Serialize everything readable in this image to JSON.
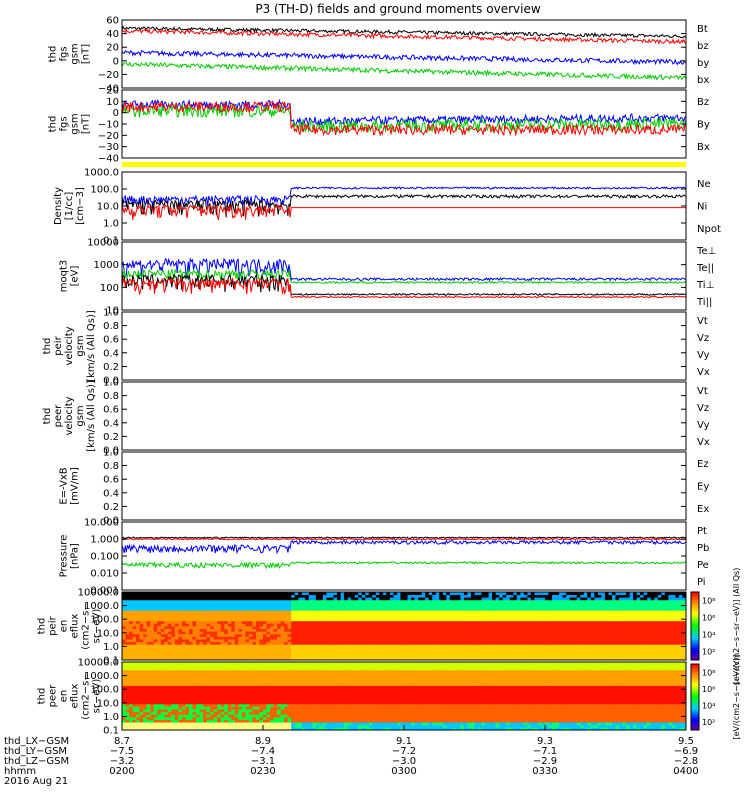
{
  "title": "P3 (TH-D) fields and ground moments overview",
  "chart_data": {
    "type": "line",
    "panels": [
      {
        "id": "fgs1",
        "ylabel": [
          "thd",
          "fgs",
          "gsm",
          "[nT]"
        ],
        "ylim": [
          -40,
          60
        ],
        "ticks": [
          "60",
          "40",
          "20",
          "0",
          "−20",
          "−40"
        ],
        "legend": [
          {
            "label": "Bt",
            "color": "#000000"
          },
          {
            "label": "bz",
            "color": "#ff0000"
          },
          {
            "label": "by",
            "color": "#00cc00"
          },
          {
            "label": "bx",
            "color": "#0000ff"
          }
        ]
      },
      {
        "id": "fgs2",
        "ylabel": [
          "thd",
          "fgs",
          "gsm",
          "[nT]"
        ],
        "ylim": [
          -45,
          20
        ],
        "ticks": [
          "20",
          "10",
          "0",
          "−10",
          "−20",
          "−30",
          "−40"
        ],
        "legend": [
          {
            "label": "Bz",
            "color": "#ff0000"
          },
          {
            "label": "By",
            "color": "#00cc00"
          },
          {
            "label": "Bx",
            "color": "#0000ff"
          }
        ]
      },
      {
        "id": "dens",
        "ylabel": [
          "Density",
          "[1/cc]",
          "[cm−3]"
        ],
        "scale": "log",
        "ticks": [
          "1000.0",
          "100.0",
          "10.0",
          "1.0",
          "0.1"
        ],
        "legend": [
          {
            "label": "Ne",
            "color": "#ff0000"
          },
          {
            "label": "Ni",
            "color": "#000000"
          },
          {
            "label": "Npot",
            "color": "#0000ff"
          }
        ]
      },
      {
        "id": "temp",
        "ylabel": [
          "moqt3",
          "[eV]"
        ],
        "scale": "log",
        "ticks": [
          "10000",
          "1000",
          "100",
          "10"
        ],
        "legend": [
          {
            "label": "Te⊥",
            "color": "#ff0000"
          },
          {
            "label": "Te||",
            "color": "#000000"
          },
          {
            "label": "Ti⊥",
            "color": "#00cc00"
          },
          {
            "label": "Ti||",
            "color": "#00cc00"
          }
        ]
      },
      {
        "id": "vi",
        "ylabel": [
          "thd",
          "peir",
          "velocity",
          "gsm",
          "[km/s (All Qs)]"
        ],
        "ylim": [
          0,
          1
        ],
        "ticks": [
          "1.0",
          "0.8",
          "0.6",
          "0.4",
          "0.2",
          "0.0"
        ],
        "legend": [
          {
            "label": "Vt",
            "color": "#000000"
          },
          {
            "label": "Vz",
            "color": "#ff0000"
          },
          {
            "label": "Vy",
            "color": "#00cc00"
          },
          {
            "label": "Vx",
            "color": "#0000ff"
          }
        ]
      },
      {
        "id": "ve",
        "ylabel": [
          "thd",
          "peer",
          "velocity",
          "gsm",
          "[km/s (All Qs)]"
        ],
        "ylim": [
          0,
          1
        ],
        "ticks": [
          "1.0",
          "0.8",
          "0.6",
          "0.4",
          "0.2",
          "0.0"
        ],
        "legend": [
          {
            "label": "Vt",
            "color": "#000000"
          },
          {
            "label": "Vz",
            "color": "#ff0000"
          },
          {
            "label": "Vy",
            "color": "#00cc00"
          },
          {
            "label": "Vx",
            "color": "#0000ff"
          }
        ]
      },
      {
        "id": "efield",
        "ylabel": [
          "E=-VxB",
          "[mV/m]"
        ],
        "ylim": [
          0,
          1
        ],
        "ticks": [
          "1.0",
          "0.8",
          "0.6",
          "0.4",
          "0.2",
          "0.0"
        ],
        "legend": [
          {
            "label": "Ez",
            "color": "#ff0000"
          },
          {
            "label": "Ey",
            "color": "#00cc00"
          },
          {
            "label": "Ex",
            "color": "#0000ff"
          }
        ]
      },
      {
        "id": "press",
        "ylabel": [
          "Pressure",
          "[nPa]"
        ],
        "scale": "log",
        "ticks": [
          "10.000",
          "1.000",
          "0.100",
          "0.010",
          "0.001"
        ],
        "legend": [
          {
            "label": "Pt",
            "color": "#000000"
          },
          {
            "label": "Pb",
            "color": "#ff0000"
          },
          {
            "label": "Pe",
            "color": "#00cc00"
          },
          {
            "label": "Pi",
            "color": "#0000ff"
          }
        ]
      },
      {
        "id": "spec_i",
        "ylabel": [
          "thd",
          "peir",
          "en",
          "eflux",
          "(cm2−s−",
          "sr−eV)"
        ],
        "type": "heatmap",
        "ticks": [
          "10000.0",
          "1000.0",
          "100.0",
          "10.0",
          "1.0",
          "0.1"
        ]
      },
      {
        "id": "spec_e",
        "ylabel": [
          "thd",
          "peer",
          "en",
          "eflux",
          "(cm2−s−",
          "sr−eV)"
        ],
        "type": "heatmap",
        "ticks": [
          "10000.0",
          "1000.0",
          "100.0",
          "10.0",
          "1.0",
          "0.1"
        ]
      }
    ],
    "colorbar_top": {
      "label": "[eV/(cm2−s−sr−eV)] (All Qs)",
      "ticks": [
        "10⁸",
        "10⁶",
        "10⁴",
        "10²"
      ]
    },
    "colorbar_bottom": {
      "label": "[eV/(cm2−s−sr−eV)]",
      "ticks": [
        "10⁸",
        "10⁶",
        "10⁴",
        "10²"
      ]
    },
    "xaxis": {
      "rows": [
        {
          "label": "thd_LX−GSM",
          "values": [
            "8.7",
            "8.9",
            "9.1",
            "9.3",
            "9.5"
          ]
        },
        {
          "label": "thd_LY−GSM",
          "values": [
            "−7.5",
            "−7.4",
            "−7.2",
            "−7.1",
            "−6.9"
          ]
        },
        {
          "label": "thd_LZ−GSM",
          "values": [
            "−3.2",
            "−3.1",
            "−3.0",
            "−2.9",
            "−2.8"
          ]
        },
        {
          "label": "hhmm",
          "values": [
            "0200",
            "0230",
            "0300",
            "0330",
            "0400"
          ]
        }
      ],
      "date": "2016 Aug 21"
    }
  }
}
